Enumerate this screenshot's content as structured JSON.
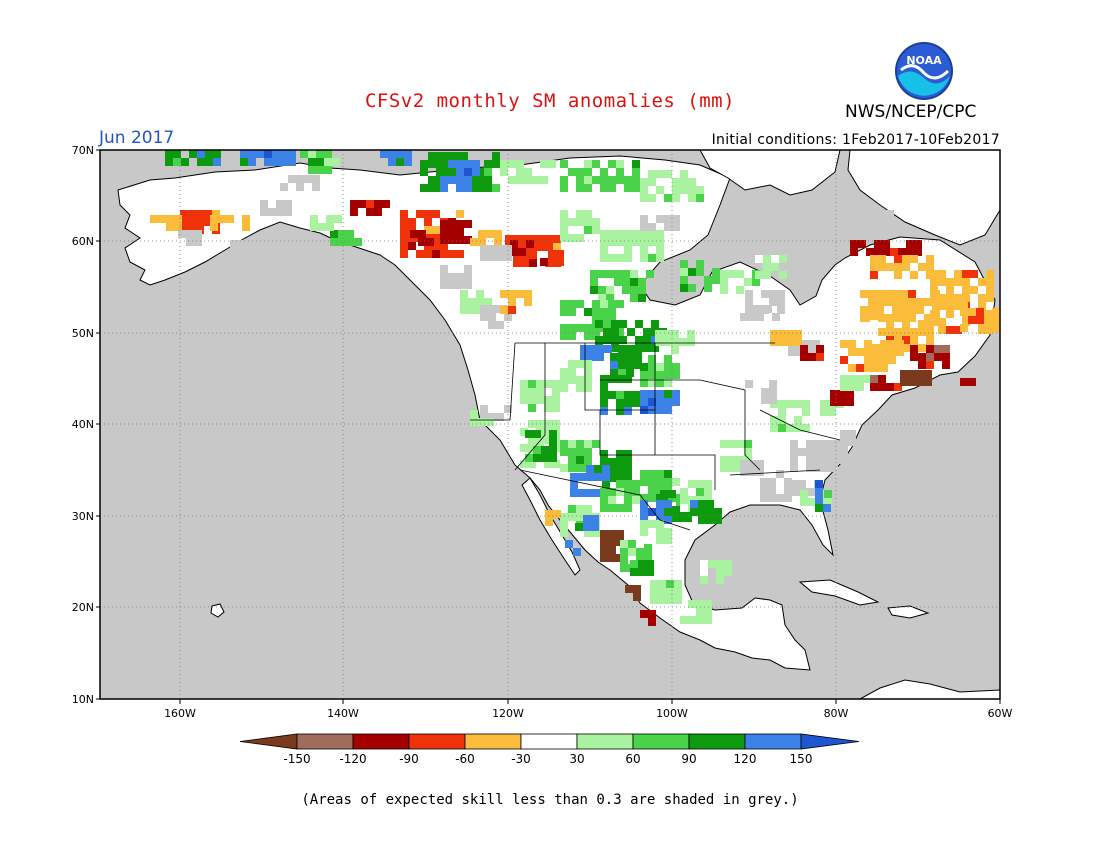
{
  "header": {
    "title": "CFSv2 monthly SM anomalies (mm)",
    "agency": "NWS/NCEP/CPC",
    "logo_text": "NOAA",
    "period": "Jun 2017",
    "initial_conditions": "Initial conditions: 1Feb2017-10Feb2017"
  },
  "map": {
    "lat_labels": [
      "70N",
      "60N",
      "50N",
      "40N",
      "30N",
      "20N",
      "10N"
    ],
    "lon_labels": [
      "160W",
      "140W",
      "120W",
      "100W",
      "80W",
      "60W"
    ],
    "colors": {
      "ocean": "#c8c8c8",
      "land": "#ffffff",
      "low_skill": "#c8c8c8",
      "coast": "#000000",
      "grid": "#888888"
    }
  },
  "legend": {
    "tick_labels": [
      "-150",
      "-120",
      "-90",
      "-60",
      "-30",
      "30",
      "60",
      "90",
      "120",
      "150"
    ],
    "bins": [
      {
        "color": "#7a3a1e"
      },
      {
        "color": "#a06c5c"
      },
      {
        "color": "#a50000"
      },
      {
        "color": "#f0320a"
      },
      {
        "color": "#fbbb3b"
      },
      {
        "color": "#ffffff"
      },
      {
        "color": "#a9f2a0"
      },
      {
        "color": "#4bd24b"
      },
      {
        "color": "#0e9a0e"
      },
      {
        "color": "#3c82e6"
      },
      {
        "color": "#1e56d2"
      }
    ]
  },
  "footnote": "(Areas of expected skill less than 0.3 are shaded in grey.)"
}
